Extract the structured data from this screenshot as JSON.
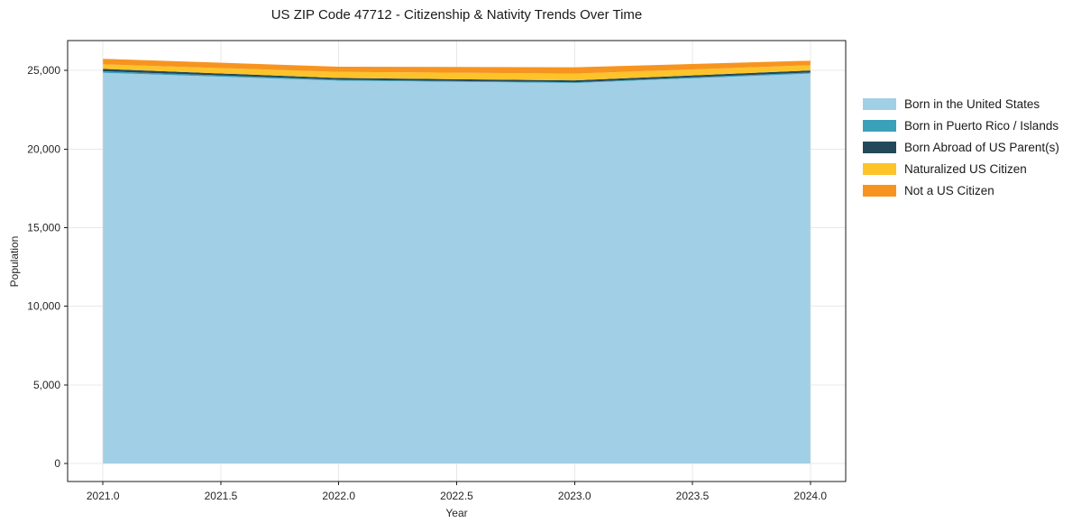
{
  "chart": {
    "title": "US ZIP Code 47712 - Citizenship & Nativity Trends Over Time",
    "xlabel": "Year",
    "ylabel": "Population"
  },
  "chart_data": {
    "type": "area",
    "stacked": true,
    "x": [
      2021,
      2022,
      2023,
      2024
    ],
    "series": [
      {
        "name": "Born in the United States",
        "color": "#A1CFE6",
        "values": [
          24850,
          24350,
          24200,
          24800
        ]
      },
      {
        "name": "Born in Puerto Rico / Islands",
        "color": "#3AA1B9",
        "values": [
          100,
          60,
          50,
          70
        ]
      },
      {
        "name": "Born Abroad of US Parent(s)",
        "color": "#23485A",
        "values": [
          150,
          110,
          120,
          130
        ]
      },
      {
        "name": "Naturalized US Citizen",
        "color": "#FDC32B",
        "values": [
          290,
          390,
          430,
          330
        ]
      },
      {
        "name": "Not a US Citizen",
        "color": "#F79420",
        "values": [
          350,
          330,
          400,
          290
        ]
      }
    ],
    "x_ticks": [
      2021.0,
      2021.5,
      2022.0,
      2022.5,
      2023.0,
      2023.5,
      2024.0
    ],
    "x_tick_labels": [
      "2021.0",
      "2021.5",
      "2022.0",
      "2022.5",
      "2023.0",
      "2023.5",
      "2024.0"
    ],
    "y_ticks": [
      0,
      5000,
      10000,
      15000,
      20000,
      25000
    ],
    "y_tick_labels": [
      "0",
      "5,000",
      "10,000",
      "15,000",
      "20,000",
      "25,000"
    ],
    "xlim": [
      2020.85,
      2024.15
    ],
    "ylim": [
      -1150,
      26900
    ],
    "grid": true,
    "legend_position": "right",
    "grid_color": "#e8e8e8",
    "spine_color": "#1a1a1a",
    "tick_color": "#1a1a1a",
    "background": "#ffffff"
  }
}
